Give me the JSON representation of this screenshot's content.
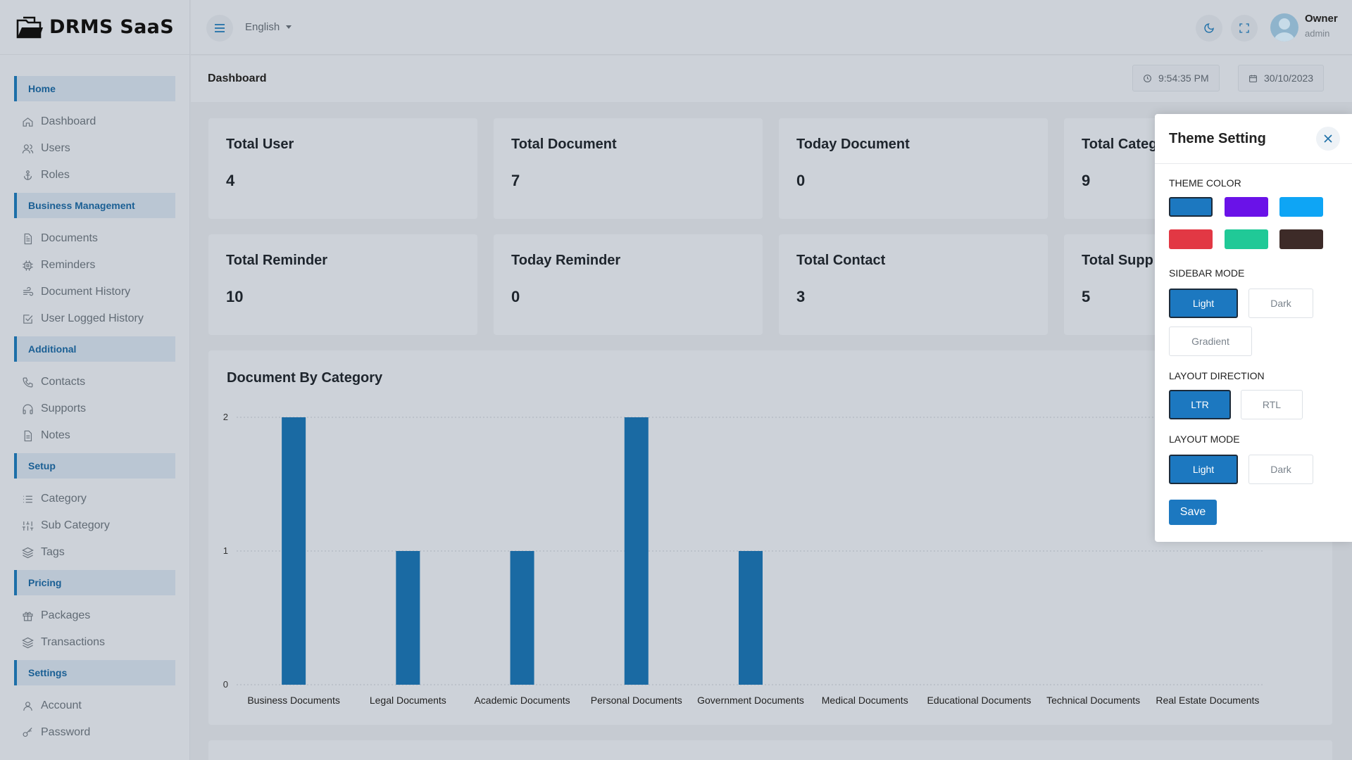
{
  "app": {
    "brand": "DRMS SaaS"
  },
  "sidebar": {
    "sections": [
      {
        "label": "Home",
        "items": [
          {
            "label": "Dashboard",
            "icon": "home-icon"
          },
          {
            "label": "Users",
            "icon": "users-icon"
          },
          {
            "label": "Roles",
            "icon": "anchor-icon"
          }
        ]
      },
      {
        "label": "Business Management",
        "items": [
          {
            "label": "Documents",
            "icon": "document-icon"
          },
          {
            "label": "Reminders",
            "icon": "chip-icon"
          },
          {
            "label": "Document History",
            "icon": "wind-icon"
          },
          {
            "label": "User Logged History",
            "icon": "check-square-icon"
          }
        ]
      },
      {
        "label": "Additional",
        "items": [
          {
            "label": "Contacts",
            "icon": "phone-icon"
          },
          {
            "label": "Supports",
            "icon": "headphones-icon"
          },
          {
            "label": "Notes",
            "icon": "note-icon"
          }
        ]
      },
      {
        "label": "Setup",
        "items": [
          {
            "label": "Category",
            "icon": "list-icon"
          },
          {
            "label": "Sub Category",
            "icon": "sliders-icon"
          },
          {
            "label": "Tags",
            "icon": "layers-icon"
          }
        ]
      },
      {
        "label": "Pricing",
        "items": [
          {
            "label": "Packages",
            "icon": "gift-icon"
          },
          {
            "label": "Transactions",
            "icon": "layers-icon"
          }
        ]
      },
      {
        "label": "Settings",
        "items": [
          {
            "label": "Account",
            "icon": "user-icon"
          },
          {
            "label": "Password",
            "icon": "key-icon"
          }
        ]
      }
    ]
  },
  "topbar": {
    "language": "English",
    "user": {
      "name": "Owner",
      "role": "admin"
    }
  },
  "header": {
    "title": "Dashboard",
    "time": "9:54:35 PM",
    "date": "30/10/2023"
  },
  "cards": [
    {
      "title": "Total User",
      "value": "4"
    },
    {
      "title": "Total Document",
      "value": "7"
    },
    {
      "title": "Today Document",
      "value": "0"
    },
    {
      "title": "Total Categ",
      "value": "9"
    },
    {
      "title": "Total Reminder",
      "value": "10"
    },
    {
      "title": "Today Reminder",
      "value": "0"
    },
    {
      "title": "Total Contact",
      "value": "3"
    },
    {
      "title": "Total Supp",
      "value": "5"
    }
  ],
  "chart_data": {
    "type": "bar",
    "title": "Document By Category",
    "categories": [
      "Business Documents",
      "Legal Documents",
      "Academic Documents",
      "Personal Documents",
      "Government Documents",
      "Medical Documents",
      "Educational Documents",
      "Technical Documents",
      "Real Estate Documents"
    ],
    "values": [
      2,
      1,
      1,
      2,
      1,
      0,
      0,
      0,
      0
    ],
    "ylim": [
      0,
      2
    ],
    "yticks": [
      "0",
      "1",
      "2"
    ],
    "color": "#1a6aa3",
    "grid": true
  },
  "theme_panel": {
    "title": "Theme Setting",
    "theme_color_label": "THEME COLOR",
    "colors": [
      "#1c78c0",
      "#6a12e8",
      "#0ea5f5",
      "#e23844",
      "#20c997",
      "#3d2b28"
    ],
    "sidebar_mode_label": "SIDEBAR MODE",
    "sidebar_modes": [
      "Light",
      "Dark",
      "Gradient"
    ],
    "layout_direction_label": "LAYOUT DIRECTION",
    "directions": [
      "LTR",
      "RTL"
    ],
    "layout_mode_label": "LAYOUT MODE",
    "layout_modes": [
      "Light",
      "Dark"
    ],
    "save_label": "Save"
  }
}
